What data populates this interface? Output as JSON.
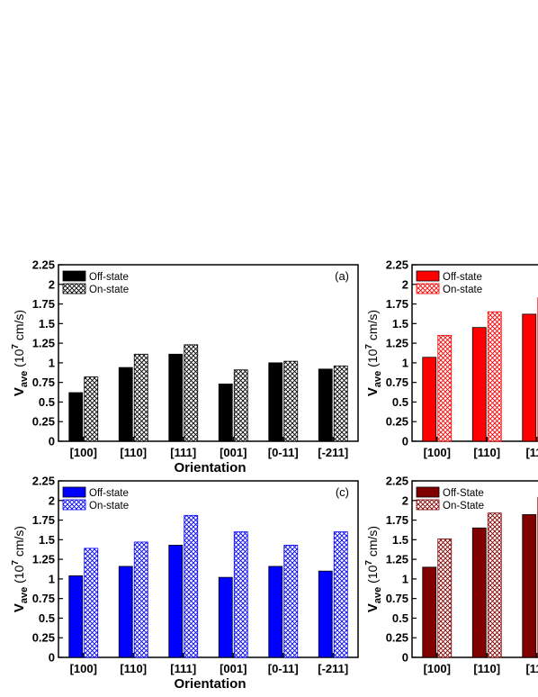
{
  "chart_data": [
    {
      "type": "bar",
      "panel_label": "(a)",
      "categories": [
        "[100]",
        "[110]",
        "[111]",
        "[001]",
        "[0-11]",
        "[-211]"
      ],
      "series": [
        {
          "name": "Off-state",
          "values": [
            0.62,
            0.94,
            1.11,
            0.73,
            1.0,
            0.92
          ],
          "color": "#000000",
          "pattern": "solid"
        },
        {
          "name": "On-state",
          "values": [
            0.82,
            1.11,
            1.23,
            0.91,
            1.02,
            0.96
          ],
          "color": "#000000",
          "pattern": "crosshatch"
        }
      ],
      "xlabel": "Orientation",
      "ylabel": "V_ave (10^7 cm/s)",
      "ylabel_main": "V",
      "ylabel_sub": "ave",
      "ylabel_unit_pre": " (10",
      "ylabel_unit_sup": "7",
      "ylabel_unit_post": " cm/s)",
      "ylim": [
        0,
        2.25
      ],
      "yticks": [
        "0",
        "0.25",
        "0.5",
        "0.75",
        "1",
        "1.25",
        "1.5",
        "1.75",
        "2",
        "2.25"
      ],
      "legend_position": "top-left"
    },
    {
      "type": "bar",
      "panel_label": "",
      "categories": [
        "[100]",
        "[110]",
        "[111"
      ],
      "series": [
        {
          "name": "Off-state",
          "values": [
            1.07,
            1.45,
            1.62
          ],
          "color": "#ff0000",
          "pattern": "solid"
        },
        {
          "name": "On-state",
          "values": [
            1.35,
            1.65,
            1.83
          ],
          "color": "#ff0000",
          "pattern": "crosshatch"
        }
      ],
      "xlabel": "Orie",
      "ylabel": "V_ave (10^7 cm/s)",
      "ylabel_main": "V",
      "ylabel_sub": "ave",
      "ylabel_unit_pre": " (10",
      "ylabel_unit_sup": "7",
      "ylabel_unit_post": " cm/s)",
      "ylim": [
        0,
        2.25
      ],
      "yticks": [
        "0",
        "0.25",
        "0.5",
        "0.75",
        "1",
        "1.25",
        "1.5",
        "1.75",
        "2",
        "2.25"
      ],
      "legend_position": "top-left"
    },
    {
      "type": "bar",
      "panel_label": "(c)",
      "categories": [
        "[100]",
        "[110]",
        "[111]",
        "[001]",
        "[0-11]",
        "[-211]"
      ],
      "series": [
        {
          "name": "Off-state",
          "values": [
            1.04,
            1.16,
            1.43,
            1.02,
            1.16,
            1.1
          ],
          "color": "#0000ff",
          "pattern": "solid"
        },
        {
          "name": "On-state",
          "values": [
            1.39,
            1.47,
            1.81,
            1.6,
            1.43,
            1.6
          ],
          "color": "#0000ff",
          "pattern": "crosshatch"
        }
      ],
      "xlabel": "Orientation",
      "ylabel": "V_ave (10^7 cm/s)",
      "ylabel_main": "V",
      "ylabel_sub": "ave",
      "ylabel_unit_pre": " (10",
      "ylabel_unit_sup": "7",
      "ylabel_unit_post": " cm/s)",
      "ylim": [
        0,
        2.25
      ],
      "yticks": [
        "0",
        "0.25",
        "0.5",
        "0.75",
        "1",
        "1.25",
        "1.5",
        "1.75",
        "2",
        "2.25"
      ],
      "legend_position": "top-left"
    },
    {
      "type": "bar",
      "panel_label": "",
      "categories": [
        "[100]",
        "[110]",
        "[111"
      ],
      "series": [
        {
          "name": "Off-State",
          "values": [
            1.15,
            1.65,
            1.82
          ],
          "color": "#800000",
          "pattern": "solid"
        },
        {
          "name": "On-State",
          "values": [
            1.51,
            1.84,
            2.04
          ],
          "color": "#800000",
          "pattern": "crosshatch"
        }
      ],
      "xlabel": "Orie",
      "ylabel": "V_ave (10^7 cm/s)",
      "ylabel_main": "V",
      "ylabel_sub": "ave",
      "ylabel_unit_pre": " (10",
      "ylabel_unit_sup": "7",
      "ylabel_unit_post": " cm/s)",
      "ylim": [
        0,
        2.25
      ],
      "yticks": [
        "0",
        "0.25",
        "0.5",
        "0.75",
        "1",
        "1.25",
        "1.5",
        "1.75",
        "2",
        "2.25"
      ],
      "legend_position": "top-left"
    }
  ]
}
